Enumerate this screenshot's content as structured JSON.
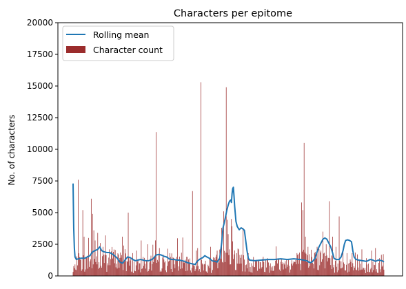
{
  "chart_data": {
    "type": "bar",
    "title": "Characters per epitome",
    "xlabel": "",
    "ylabel": "No. of characters",
    "ylim": [
      0,
      20000
    ],
    "yticks": [
      0,
      2500,
      5000,
      7500,
      10000,
      12500,
      15000,
      17500,
      20000
    ],
    "xticks": [],
    "grid": false,
    "legend": {
      "placement": "top-left"
    },
    "colors": {
      "bar": "#9b2c2c",
      "line": "#1f77b4"
    },
    "bar_series": {
      "name": "Character count",
      "count": 480,
      "profile": [
        [
          0,
          300
        ],
        [
          8,
          1200
        ],
        [
          40,
          1000
        ],
        [
          60,
          1500
        ],
        [
          96,
          800
        ],
        [
          150,
          1200
        ],
        [
          190,
          800
        ],
        [
          215,
          900
        ],
        [
          240,
          2100
        ],
        [
          265,
          1000
        ],
        [
          335,
          1000
        ],
        [
          370,
          1600
        ],
        [
          410,
          900
        ],
        [
          430,
          800
        ],
        [
          480,
          700
        ]
      ],
      "spikes": [
        [
          8,
          7600
        ],
        [
          12,
          1300
        ],
        [
          15,
          5200
        ],
        [
          17,
          3100
        ],
        [
          20,
          1500
        ],
        [
          24,
          3000
        ],
        [
          28,
          6100
        ],
        [
          30,
          4900
        ],
        [
          32,
          3600
        ],
        [
          34,
          2800
        ],
        [
          38,
          3400
        ],
        [
          42,
          2600
        ],
        [
          46,
          2300
        ],
        [
          50,
          3200
        ],
        [
          56,
          2100
        ],
        [
          62,
          1900
        ],
        [
          70,
          1700
        ],
        [
          76,
          3100
        ],
        [
          78,
          2400
        ],
        [
          85,
          5000
        ],
        [
          92,
          1800
        ],
        [
          98,
          2000
        ],
        [
          105,
          2800
        ],
        [
          108,
          1500
        ],
        [
          115,
          2500
        ],
        [
          120,
          1600
        ],
        [
          128,
          11350
        ],
        [
          133,
          2200
        ],
        [
          140,
          1300
        ],
        [
          148,
          1200
        ],
        [
          160,
          1500
        ],
        [
          170,
          1200
        ],
        [
          178,
          1300
        ],
        [
          184,
          6700
        ],
        [
          190,
          2000
        ],
        [
          197,
          15300
        ],
        [
          204,
          1200
        ],
        [
          212,
          2300
        ],
        [
          222,
          2000
        ],
        [
          229,
          3800
        ],
        [
          232,
          5100
        ],
        [
          236,
          14900
        ],
        [
          239,
          3300
        ],
        [
          241,
          2100
        ],
        [
          244,
          4500
        ],
        [
          248,
          1700
        ],
        [
          255,
          2100
        ],
        [
          262,
          3800
        ],
        [
          270,
          1800
        ],
        [
          278,
          1500
        ],
        [
          288,
          1100
        ],
        [
          300,
          1400
        ],
        [
          312,
          1200
        ],
        [
          325,
          1000
        ],
        [
          332,
          1300
        ],
        [
          345,
          1800
        ],
        [
          352,
          5800
        ],
        [
          354,
          5200
        ],
        [
          356,
          10500
        ],
        [
          358,
          3100
        ],
        [
          362,
          2300
        ],
        [
          368,
          1500
        ],
        [
          372,
          1800
        ],
        [
          376,
          2300
        ],
        [
          382,
          2000
        ],
        [
          385,
          3500
        ],
        [
          390,
          2500
        ],
        [
          395,
          5900
        ],
        [
          400,
          3100
        ],
        [
          405,
          2300
        ],
        [
          410,
          4700
        ],
        [
          416,
          2000
        ],
        [
          422,
          1800
        ],
        [
          430,
          1800
        ],
        [
          438,
          1700
        ],
        [
          445,
          2100
        ],
        [
          452,
          1400
        ],
        [
          460,
          2000
        ],
        [
          466,
          2200
        ],
        [
          472,
          1400
        ]
      ]
    },
    "line_series": {
      "name": "Rolling mean",
      "points": [
        [
          0,
          7300
        ],
        [
          1,
          3800
        ],
        [
          2,
          2200
        ],
        [
          3,
          1500
        ],
        [
          5,
          1300
        ],
        [
          8,
          1350
        ],
        [
          12,
          1400
        ],
        [
          18,
          1400
        ],
        [
          22,
          1500
        ],
        [
          26,
          1600
        ],
        [
          28,
          1750
        ],
        [
          30,
          1900
        ],
        [
          34,
          2000
        ],
        [
          38,
          2100
        ],
        [
          41,
          2300
        ],
        [
          44,
          2000
        ],
        [
          48,
          1900
        ],
        [
          52,
          1850
        ],
        [
          56,
          1850
        ],
        [
          60,
          1750
        ],
        [
          64,
          1600
        ],
        [
          68,
          1400
        ],
        [
          72,
          1100
        ],
        [
          76,
          1000
        ],
        [
          80,
          1250
        ],
        [
          84,
          1500
        ],
        [
          88,
          1450
        ],
        [
          92,
          1300
        ],
        [
          96,
          1200
        ],
        [
          100,
          1250
        ],
        [
          104,
          1300
        ],
        [
          108,
          1250
        ],
        [
          112,
          1200
        ],
        [
          116,
          1200
        ],
        [
          120,
          1250
        ],
        [
          124,
          1400
        ],
        [
          128,
          1650
        ],
        [
          132,
          1700
        ],
        [
          136,
          1650
        ],
        [
          140,
          1550
        ],
        [
          144,
          1500
        ],
        [
          148,
          1350
        ],
        [
          152,
          1300
        ],
        [
          156,
          1300
        ],
        [
          160,
          1250
        ],
        [
          164,
          1250
        ],
        [
          168,
          1200
        ],
        [
          172,
          1150
        ],
        [
          176,
          1050
        ],
        [
          180,
          1000
        ],
        [
          184,
          950
        ],
        [
          188,
          900
        ],
        [
          192,
          1200
        ],
        [
          196,
          1350
        ],
        [
          200,
          1450
        ],
        [
          203,
          1600
        ],
        [
          206,
          1500
        ],
        [
          210,
          1400
        ],
        [
          214,
          1200
        ],
        [
          218,
          1150
        ],
        [
          222,
          1100
        ],
        [
          226,
          1400
        ],
        [
          229,
          2600
        ],
        [
          231,
          3800
        ],
        [
          233,
          4200
        ],
        [
          235,
          4700
        ],
        [
          237,
          5200
        ],
        [
          239,
          5600
        ],
        [
          241,
          5900
        ],
        [
          243,
          6000
        ],
        [
          244,
          5800
        ],
        [
          245,
          6500
        ],
        [
          246,
          6900
        ],
        [
          247,
          7000
        ],
        [
          248,
          6300
        ],
        [
          249,
          5500
        ],
        [
          251,
          4300
        ],
        [
          253,
          3900
        ],
        [
          256,
          3650
        ],
        [
          259,
          3800
        ],
        [
          262,
          3700
        ],
        [
          264,
          3600
        ],
        [
          266,
          2800
        ],
        [
          268,
          2000
        ],
        [
          270,
          1400
        ],
        [
          272,
          1250
        ],
        [
          280,
          1200
        ],
        [
          290,
          1250
        ],
        [
          300,
          1300
        ],
        [
          310,
          1300
        ],
        [
          320,
          1350
        ],
        [
          330,
          1300
        ],
        [
          340,
          1350
        ],
        [
          350,
          1300
        ],
        [
          355,
          1250
        ],
        [
          360,
          1200
        ],
        [
          363,
          1100
        ],
        [
          366,
          1050
        ],
        [
          368,
          1100
        ],
        [
          370,
          1200
        ],
        [
          373,
          1400
        ],
        [
          376,
          1900
        ],
        [
          379,
          2300
        ],
        [
          382,
          2600
        ],
        [
          385,
          2900
        ],
        [
          388,
          3000
        ],
        [
          391,
          2900
        ],
        [
          394,
          2600
        ],
        [
          397,
          2300
        ],
        [
          400,
          1800
        ],
        [
          402,
          1400
        ],
        [
          405,
          1300
        ],
        [
          410,
          1300
        ],
        [
          413,
          1500
        ],
        [
          416,
          2000
        ],
        [
          418,
          2500
        ],
        [
          420,
          2800
        ],
        [
          423,
          2850
        ],
        [
          426,
          2800
        ],
        [
          429,
          2700
        ],
        [
          431,
          2000
        ],
        [
          433,
          1500
        ],
        [
          436,
          1300
        ],
        [
          440,
          1250
        ],
        [
          446,
          1200
        ],
        [
          452,
          1150
        ],
        [
          458,
          1300
        ],
        [
          462,
          1250
        ],
        [
          466,
          1150
        ],
        [
          470,
          1250
        ],
        [
          476,
          1200
        ],
        [
          479,
          1100
        ]
      ]
    }
  }
}
